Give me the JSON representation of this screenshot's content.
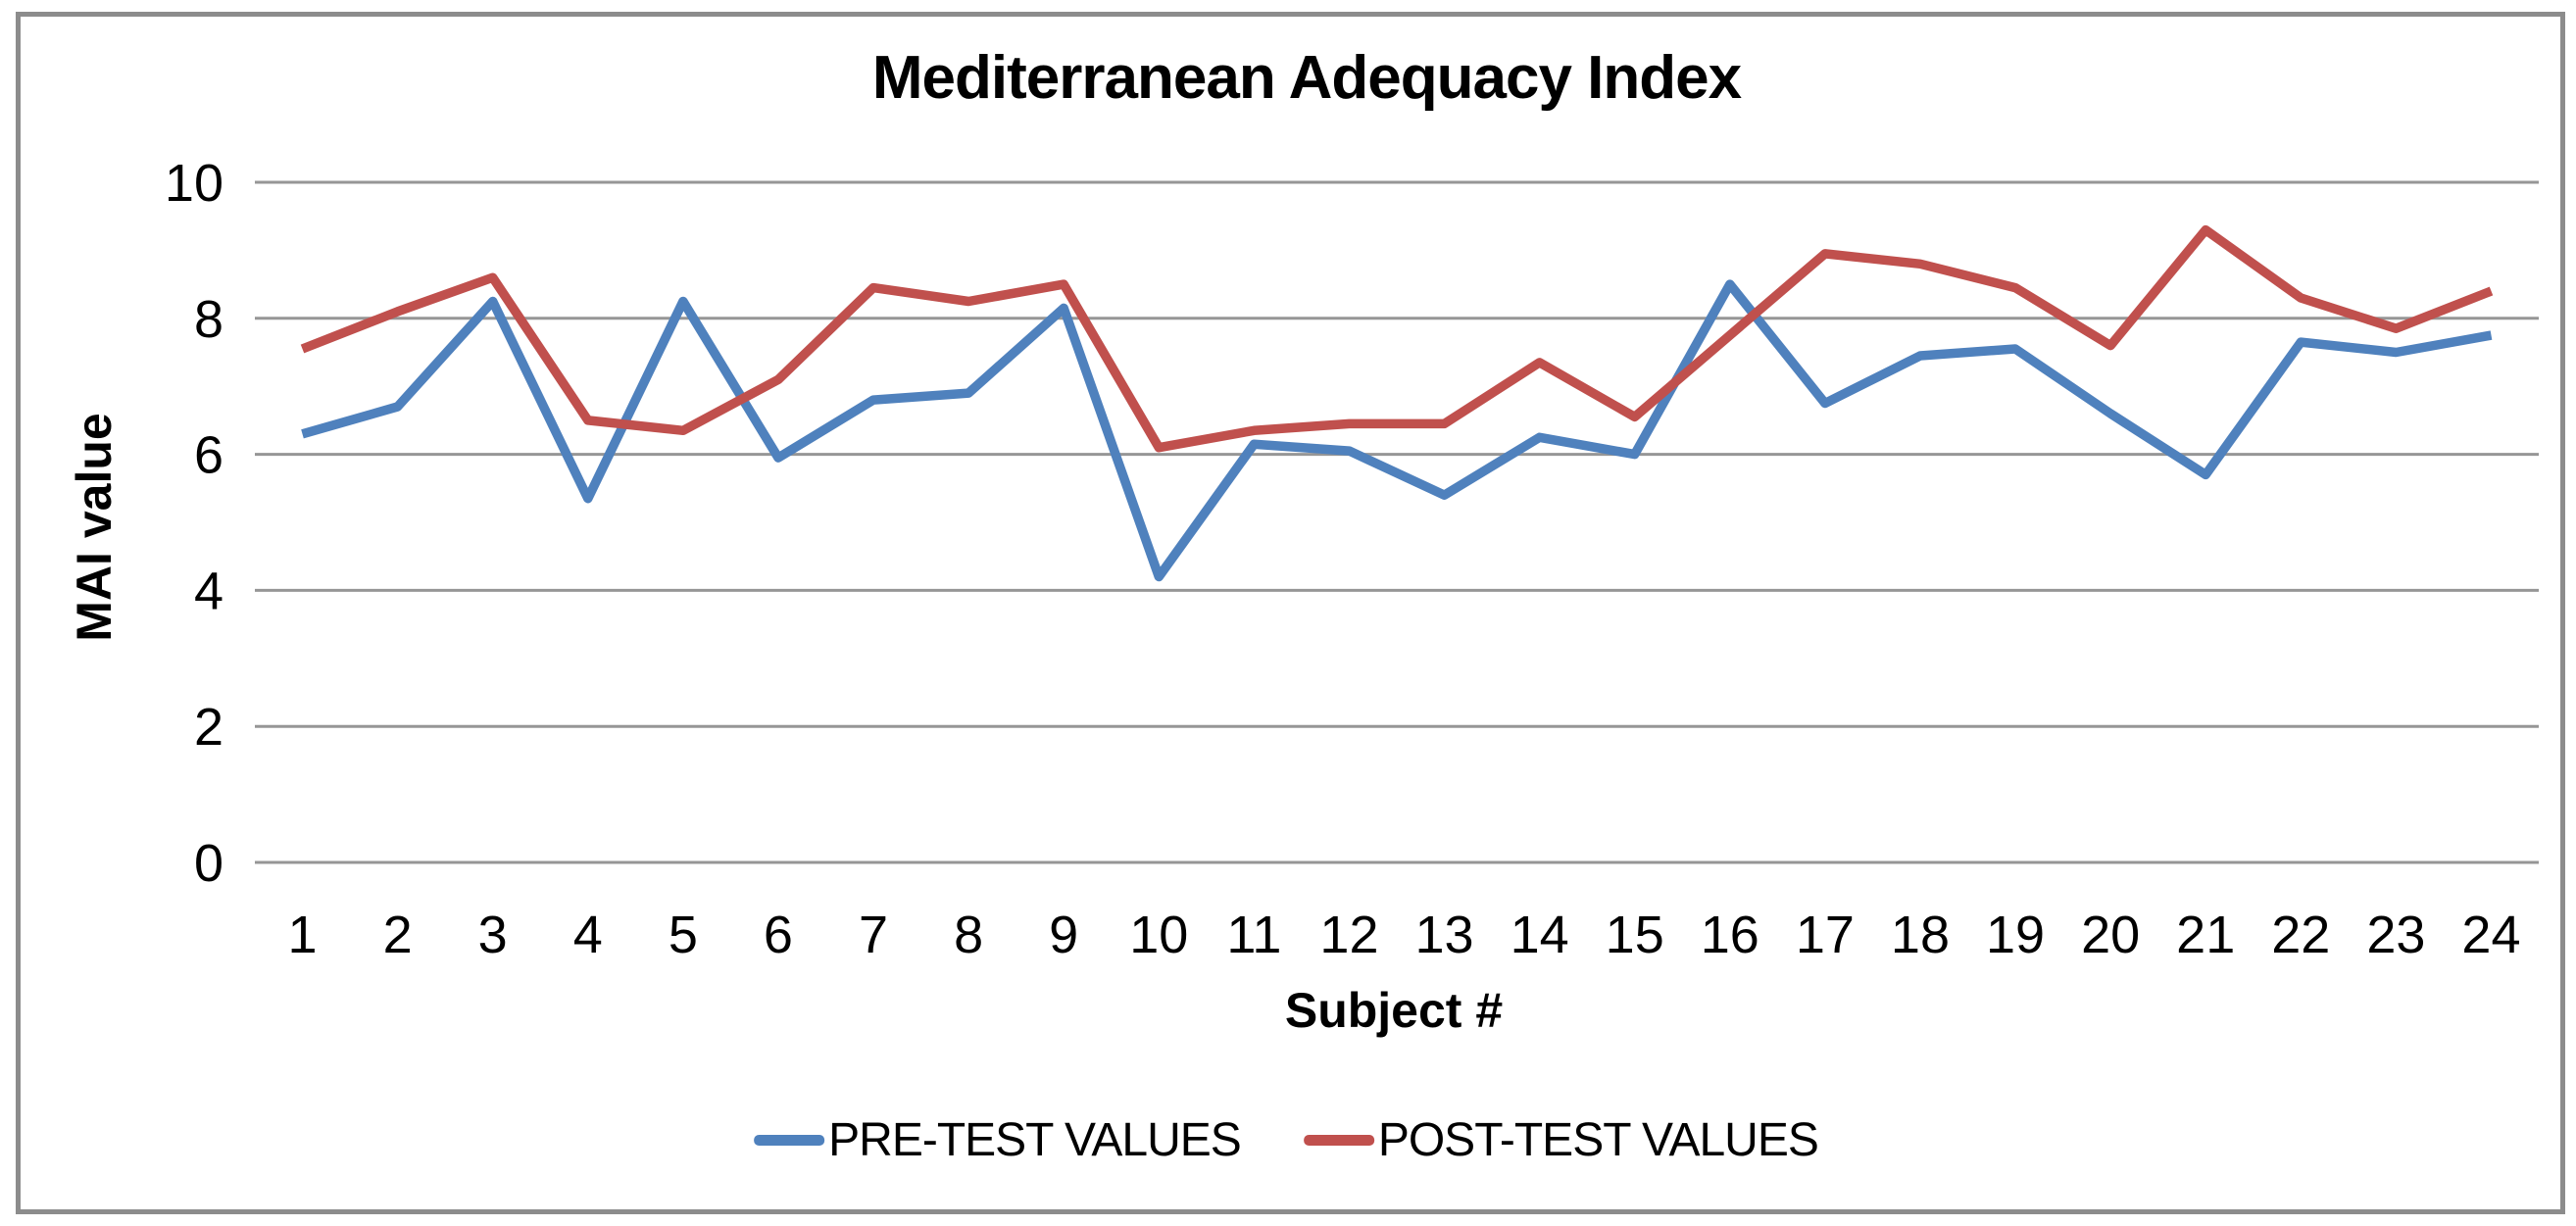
{
  "chart_data": {
    "type": "line",
    "title": "Mediterranean Adequacy Index",
    "xlabel": "Subject #",
    "ylabel": "MAI value",
    "x": [
      "1",
      "2",
      "3",
      "4",
      "5",
      "6",
      "7",
      "8",
      "9",
      "10",
      "11",
      "12",
      "13",
      "14",
      "15",
      "16",
      "17",
      "18",
      "19",
      "20",
      "21",
      "22",
      "23",
      "24"
    ],
    "series": [
      {
        "name": "PRE-TEST VALUES",
        "color": "#4F81BD",
        "values": [
          6.3,
          6.7,
          8.25,
          5.35,
          8.25,
          5.95,
          6.8,
          6.9,
          8.15,
          4.2,
          6.15,
          6.05,
          5.4,
          6.25,
          6.0,
          8.5,
          6.75,
          7.45,
          7.55,
          6.6,
          5.7,
          7.65,
          7.5,
          7.75
        ]
      },
      {
        "name": "POST-TEST VALUES",
        "color": "#C0504D",
        "values": [
          7.55,
          8.1,
          8.6,
          6.5,
          6.35,
          7.1,
          8.45,
          8.25,
          8.5,
          6.1,
          6.35,
          6.45,
          6.45,
          7.35,
          6.55,
          7.75,
          8.95,
          8.8,
          8.45,
          7.6,
          9.3,
          8.3,
          7.85,
          8.4
        ]
      }
    ],
    "y_ticks": [
      0,
      2,
      4,
      6,
      8,
      10
    ],
    "ylim": [
      0,
      10
    ],
    "grid": true,
    "legend_position": "bottom"
  },
  "colors": {
    "gridline": "#969696",
    "frame_border": "#8c8c8c",
    "text": "#000000"
  }
}
